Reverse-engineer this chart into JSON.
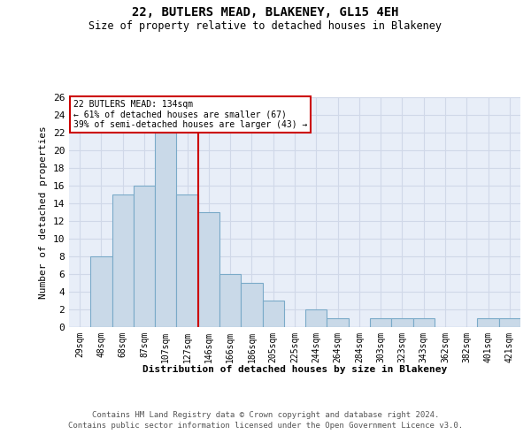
{
  "title": "22, BUTLERS MEAD, BLAKENEY, GL15 4EH",
  "subtitle": "Size of property relative to detached houses in Blakeney",
  "xlabel": "Distribution of detached houses by size in Blakeney",
  "ylabel": "Number of detached properties",
  "footer_line1": "Contains HM Land Registry data © Crown copyright and database right 2024.",
  "footer_line2": "Contains public sector information licensed under the Open Government Licence v3.0.",
  "categories": [
    "29sqm",
    "48sqm",
    "68sqm",
    "87sqm",
    "107sqm",
    "127sqm",
    "146sqm",
    "166sqm",
    "186sqm",
    "205sqm",
    "225sqm",
    "244sqm",
    "264sqm",
    "284sqm",
    "303sqm",
    "323sqm",
    "343sqm",
    "362sqm",
    "382sqm",
    "401sqm",
    "421sqm"
  ],
  "values": [
    0,
    8,
    15,
    16,
    22,
    15,
    13,
    6,
    5,
    3,
    0,
    2,
    1,
    0,
    1,
    1,
    1,
    0,
    0,
    1,
    1
  ],
  "bar_color": "#c9d9e8",
  "bar_edge_color": "#7aaac8",
  "property_line_x": 5.5,
  "property_label": "22 BUTLERS MEAD: 134sqm",
  "annotation_line1": "← 61% of detached houses are smaller (67)",
  "annotation_line2": "39% of semi-detached houses are larger (43) →",
  "annotation_box_color": "#ffffff",
  "annotation_box_edge_color": "#cc0000",
  "vline_color": "#cc0000",
  "ylim": [
    0,
    26
  ],
  "yticks": [
    0,
    2,
    4,
    6,
    8,
    10,
    12,
    14,
    16,
    18,
    20,
    22,
    24,
    26
  ],
  "grid_color": "#d0d8e8",
  "background_color": "#e8eef8"
}
